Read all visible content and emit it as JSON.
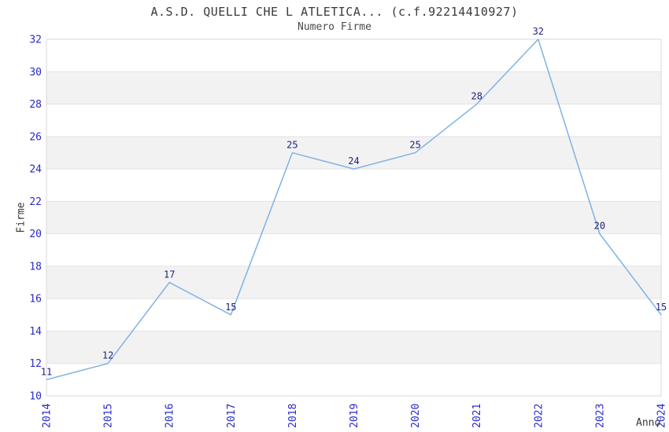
{
  "chart_data": {
    "type": "line",
    "title": "A.S.D. QUELLI CHE L ATLETICA... (c.f.92214410927)",
    "subtitle": "Numero Firme",
    "xlabel": "Anno",
    "ylabel": "Firme",
    "categories": [
      "2014",
      "2015",
      "2016",
      "2017",
      "2018",
      "2019",
      "2020",
      "2021",
      "2022",
      "2023",
      "2024"
    ],
    "values": [
      11,
      12,
      17,
      15,
      25,
      24,
      25,
      28,
      32,
      20,
      15
    ],
    "ylim": [
      10,
      32
    ],
    "yticks": [
      10,
      12,
      14,
      16,
      18,
      20,
      22,
      24,
      26,
      28,
      30,
      32
    ],
    "grid": "alternating-horizontal-bands",
    "legend": "none",
    "data_labels": true,
    "colors": {
      "line": "#7FB2E4",
      "axis_tick_label": "#2929CC",
      "data_label": "#1F1F7A",
      "band_fill": "#F2F2F2",
      "gridline": "#E3E3E3",
      "plot_border": "#D8D8D8",
      "text": "#3A3A3A",
      "background": "#FFFFFF"
    }
  }
}
